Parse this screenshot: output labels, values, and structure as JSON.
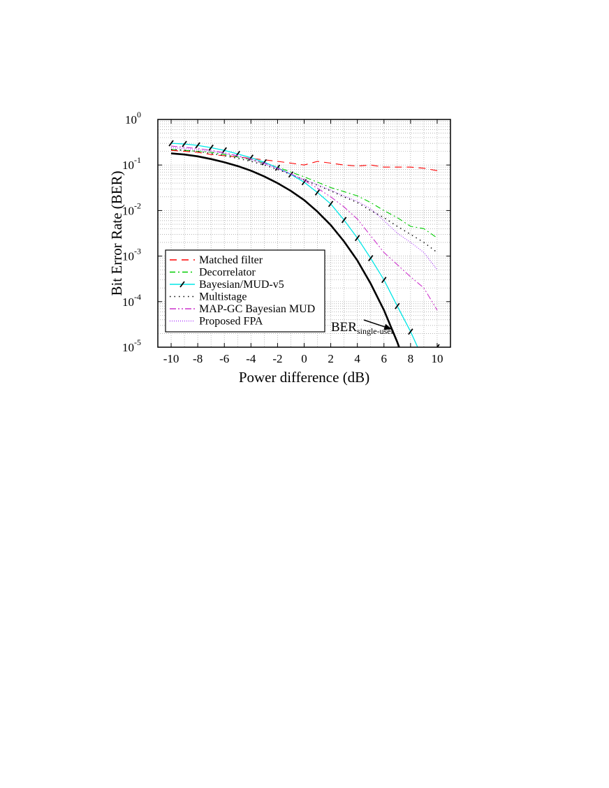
{
  "chart_data": {
    "type": "line",
    "xlabel": "Power difference (dB)",
    "ylabel": "Bit Error Rate (BER)",
    "xlim": [
      -11,
      11
    ],
    "ylim_log10": [
      -5,
      0
    ],
    "yscale": "log",
    "x_ticks": [
      -10,
      -8,
      -6,
      -4,
      -2,
      0,
      2,
      4,
      6,
      8,
      10
    ],
    "x_tick_labels": [
      "-10",
      "-8",
      "-6",
      "-4",
      "-2",
      "0",
      "2",
      "4",
      "6",
      "8",
      "10"
    ],
    "y_tick_exponents": [
      0,
      -1,
      -2,
      -3,
      -4,
      -5
    ],
    "y_tick_base": "10",
    "y_tick_labels": [
      "10^0",
      "10^-1",
      "10^-2",
      "10^-3",
      "10^-4",
      "10^-5"
    ],
    "grid": true,
    "legend_position": "bottom-left",
    "annotation": {
      "main": "BER",
      "sub": "single-user",
      "points_to_x": 6.6
    },
    "series": [
      {
        "name": "Matched filter",
        "color": "#ff0000",
        "style": "dashed",
        "x": [
          -10,
          -9,
          -8,
          -7,
          -6,
          -5,
          -4,
          -3,
          -2,
          -1,
          0,
          1,
          2,
          3,
          4,
          5,
          6,
          7,
          8,
          9,
          10
        ],
        "y": [
          0.21,
          0.2,
          0.19,
          0.17,
          0.16,
          0.15,
          0.14,
          0.13,
          0.12,
          0.11,
          0.1,
          0.12,
          0.11,
          0.1,
          0.095,
          0.1,
          0.09,
          0.09,
          0.09,
          0.085,
          0.075
        ]
      },
      {
        "name": "Decorrelator",
        "color": "#00cc00",
        "style": "dashdot",
        "x": [
          -10,
          -9,
          -8,
          -7,
          -6,
          -5,
          -4,
          -3,
          -2,
          -1,
          0,
          1,
          2,
          3,
          4,
          5,
          6,
          7,
          8,
          9,
          10
        ],
        "y": [
          0.22,
          0.21,
          0.2,
          0.19,
          0.17,
          0.15,
          0.13,
          0.11,
          0.09,
          0.07,
          0.055,
          0.042,
          0.032,
          0.026,
          0.021,
          0.015,
          0.01,
          0.007,
          0.0045,
          0.004,
          0.0025
        ]
      },
      {
        "name": "Bayesian/MUD-v5",
        "color": "#00e5e5",
        "style": "solid-hatched",
        "x": [
          -10,
          -9,
          -8,
          -7,
          -6,
          -5,
          -4,
          -3,
          -2,
          -1,
          0,
          1,
          2,
          3,
          4,
          5,
          6,
          7,
          8,
          9,
          10
        ],
        "y": [
          0.3,
          0.29,
          0.27,
          0.24,
          0.21,
          0.175,
          0.145,
          0.115,
          0.087,
          0.062,
          0.042,
          0.025,
          0.014,
          0.0062,
          0.0025,
          0.0009,
          0.0003,
          8e-05,
          2.2e-05,
          5e-06,
          1e-05
        ]
      },
      {
        "name": "Multistage",
        "color": "#000000",
        "style": "dotted",
        "x": [
          -10,
          -9,
          -8,
          -7,
          -6,
          -5,
          -4,
          -3,
          -2,
          -1,
          0,
          1,
          2,
          3,
          4,
          5,
          6,
          7,
          8,
          9,
          10
        ],
        "y": [
          0.22,
          0.21,
          0.2,
          0.18,
          0.16,
          0.14,
          0.12,
          0.1,
          0.08,
          0.062,
          0.047,
          0.036,
          0.027,
          0.02,
          0.015,
          0.01,
          0.007,
          0.0045,
          0.003,
          0.002,
          0.0012
        ]
      },
      {
        "name": "MAP-GC Bayesian MUD",
        "color": "#cc33cc",
        "style": "dashdotdot",
        "x": [
          -10,
          -9,
          -8,
          -7,
          -6,
          -5,
          -4,
          -3,
          -2,
          -1,
          0,
          1,
          2,
          3,
          4,
          5,
          6,
          7,
          8,
          9,
          10
        ],
        "y": [
          0.26,
          0.245,
          0.23,
          0.21,
          0.185,
          0.16,
          0.135,
          0.11,
          0.085,
          0.064,
          0.046,
          0.031,
          0.02,
          0.012,
          0.0065,
          0.0028,
          0.0012,
          0.00065,
          0.00035,
          0.0002,
          6.5e-05
        ]
      },
      {
        "name": "Proposed FPA",
        "color": "#b040ff",
        "style": "fine-dotted",
        "x": [
          -10,
          -9,
          -8,
          -7,
          -6,
          -5,
          -4,
          -3,
          -2,
          -1,
          0,
          1,
          2,
          3,
          4,
          5,
          6,
          7,
          8,
          9,
          10
        ],
        "y": [
          0.24,
          0.23,
          0.215,
          0.2,
          0.18,
          0.155,
          0.13,
          0.105,
          0.083,
          0.063,
          0.048,
          0.037,
          0.028,
          0.021,
          0.016,
          0.011,
          0.006,
          0.0032,
          0.002,
          0.0012,
          0.0005
        ]
      },
      {
        "name": "BER single-user",
        "color": "#000000",
        "style": "solid-thick",
        "in_legend": false,
        "x": [
          -10,
          -9,
          -8,
          -7,
          -6,
          -5,
          -4,
          -3,
          -2,
          -1,
          0,
          1,
          2,
          3,
          4,
          5,
          6,
          7,
          8,
          8.7
        ],
        "y": [
          0.18,
          0.17,
          0.155,
          0.135,
          0.115,
          0.095,
          0.075,
          0.056,
          0.04,
          0.027,
          0.017,
          0.0095,
          0.0048,
          0.0021,
          0.0008,
          0.00025,
          6.5e-05,
          1.3e-05,
          2e-06,
          1e-05
        ]
      }
    ]
  }
}
